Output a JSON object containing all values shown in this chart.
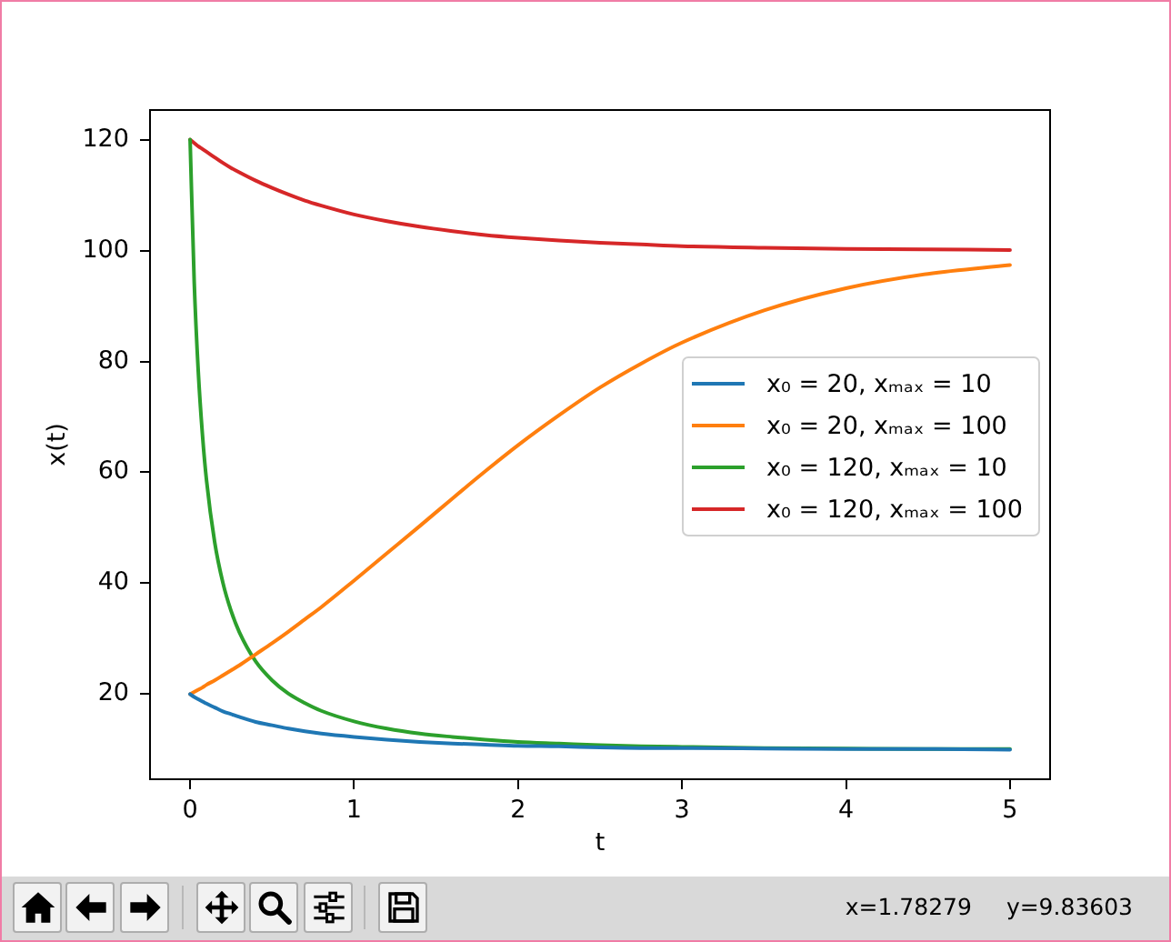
{
  "chart_data": {
    "type": "line",
    "xlabel": "t",
    "ylabel": "x(t)",
    "x": [
      0,
      0.025,
      0.05,
      0.075,
      0.1,
      0.15,
      0.2,
      0.25,
      0.3,
      0.4,
      0.5,
      0.6,
      0.7,
      0.8,
      1,
      1.2,
      1.4,
      1.6,
      1.8,
      2,
      2.25,
      2.5,
      2.75,
      3,
      3.5,
      4,
      4.5,
      5
    ],
    "series": [
      {
        "name": "x₀ = 20, xₘₐₓ = 10",
        "color": "#1f77b4",
        "values": [
          20,
          19.5,
          19.1,
          18.7,
          18.3,
          17.6,
          16.9,
          16.4,
          15.9,
          15.0,
          14.4,
          13.8,
          13.3,
          12.9,
          12.3,
          11.8,
          11.4,
          11.1,
          10.9,
          10.7,
          10.6,
          10.4,
          10.3,
          10.3,
          10.2,
          10.1,
          10.1,
          10.0
        ]
      },
      {
        "name": "x₀ = 20, xₘₐₓ = 100",
        "color": "#ff7f0e",
        "values": [
          20,
          20.4,
          20.8,
          21.2,
          21.7,
          22.5,
          23.4,
          24.3,
          25.2,
          27.2,
          29.2,
          31.3,
          33.5,
          35.7,
          40.5,
          45.4,
          50.3,
          55.3,
          60.2,
          64.9,
          70.3,
          75.3,
          79.6,
          83.4,
          89.2,
          93.2,
          95.8,
          97.4
        ]
      },
      {
        "name": "x₀ = 120, xₘₐₓ = 10",
        "color": "#2ca02c",
        "values": [
          120,
          94.4,
          78.1,
          66.9,
          58.6,
          47.4,
          40.1,
          35.0,
          31.2,
          25.9,
          22.5,
          20.1,
          18.4,
          17.0,
          15.1,
          13.8,
          12.9,
          12.3,
          11.8,
          11.4,
          11.1,
          10.8,
          10.6,
          10.5,
          10.3,
          10.2,
          10.1,
          10.1
        ]
      },
      {
        "name": "x₀ = 120, xₘₐₓ = 100",
        "color": "#d62728",
        "values": [
          120,
          119.4,
          118.8,
          118.3,
          117.8,
          116.8,
          115.8,
          114.9,
          114.1,
          112.6,
          111.3,
          110.1,
          109.0,
          108.1,
          106.5,
          105.3,
          104.3,
          103.5,
          102.8,
          102.3,
          101.8,
          101.4,
          101.1,
          100.8,
          100.5,
          100.3,
          100.2,
          100.1
        ]
      }
    ],
    "xlim": [
      -0.25,
      5.25
    ],
    "xticks": [
      0,
      1,
      2,
      3,
      4,
      5
    ],
    "ylim": [
      4.5,
      125.5
    ],
    "yticks": [
      20,
      40,
      60,
      80,
      100,
      120
    ],
    "grid": false,
    "legend": "center right",
    "marker": "none",
    "line_style": "solid",
    "annotations": [
      "x=1.78279",
      "y=9.83603"
    ]
  }
}
